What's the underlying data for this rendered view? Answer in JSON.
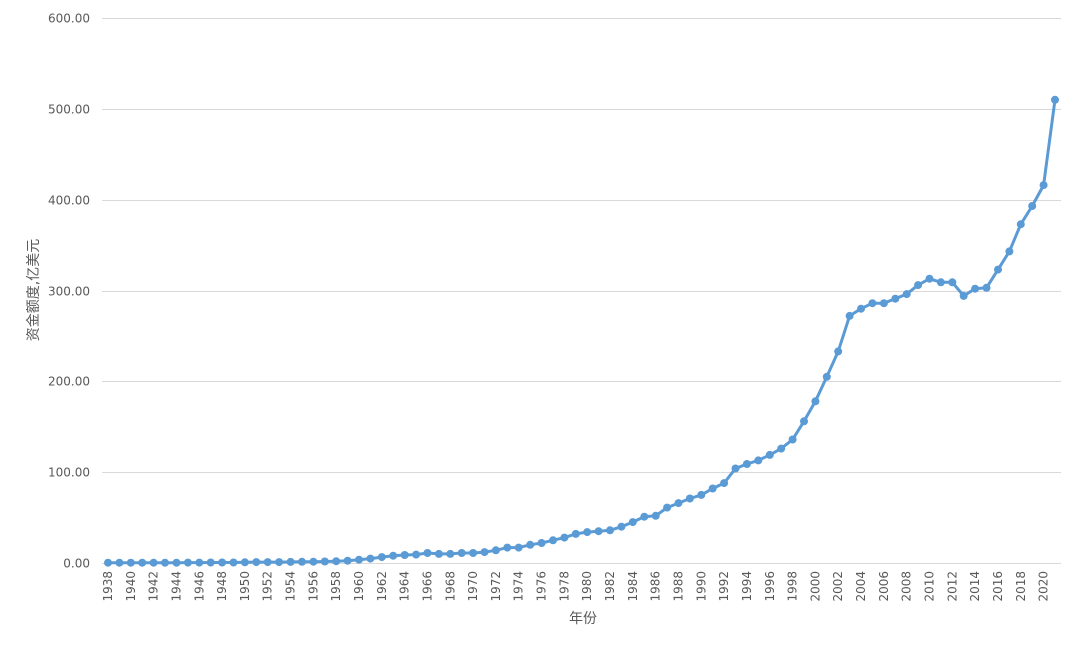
{
  "chart_data": {
    "type": "line",
    "title": "",
    "xlabel": "年份",
    "ylabel": "资金额度,亿美元",
    "ylim": [
      0,
      600
    ],
    "yticks": [
      "0.00",
      "100.00",
      "200.00",
      "300.00",
      "400.00",
      "500.00",
      "600.00"
    ],
    "grid": true,
    "marker": "circle",
    "color": "#5b9bd5",
    "x_tick_labels": [
      "1938",
      "1940",
      "1942",
      "1944",
      "1946",
      "1948",
      "1950",
      "1952",
      "1954",
      "1956",
      "1958",
      "1960",
      "1962",
      "1964",
      "1966",
      "1968",
      "1970",
      "1972",
      "1974",
      "1976",
      "1978",
      "1980",
      "1982",
      "1984",
      "1986",
      "1988",
      "1990",
      "1992",
      "1994",
      "1996",
      "1998",
      "2000",
      "2002",
      "2004",
      "2006",
      "2008",
      "2010",
      "2012",
      "2014",
      "2016",
      "2018",
      "2020"
    ],
    "x": [
      1938,
      1939,
      1940,
      1941,
      1942,
      1943,
      1944,
      1945,
      1946,
      1947,
      1948,
      1949,
      1950,
      1951,
      1952,
      1953,
      1954,
      1955,
      1956,
      1957,
      1958,
      1959,
      1960,
      1961,
      1962,
      1963,
      1964,
      1965,
      1966,
      1967,
      1968,
      1969,
      1970,
      1971,
      1972,
      1973,
      1974,
      1975,
      1976,
      1977,
      1978,
      1979,
      1980,
      1981,
      1982,
      1983,
      1984,
      1985,
      1986,
      1987,
      1988,
      1989,
      1990,
      1991,
      1992,
      1993,
      1994,
      1995,
      1996,
      1997,
      1998,
      1999,
      2000,
      2001,
      2002,
      2003,
      2004,
      2005,
      2006,
      2007,
      2008,
      2009,
      2010,
      2011,
      2012,
      2013,
      2014,
      2015,
      2016,
      2017,
      2018,
      2019,
      2020,
      2021
    ],
    "values": [
      0.3,
      0.3,
      0.3,
      0.3,
      0.3,
      0.3,
      0.3,
      0.4,
      0.4,
      0.5,
      0.5,
      0.6,
      0.8,
      1.0,
      1.0,
      1.0,
      1.2,
      1.3,
      1.4,
      1.6,
      2.0,
      2.5,
      3.6,
      4.8,
      6.5,
      8.0,
      8.8,
      9.3,
      11.0,
      10.0,
      10.0,
      11.0,
      11.0,
      12.0,
      14.0,
      17.0,
      17.0,
      20.0,
      22.0,
      25.0,
      28.0,
      32.0,
      34.0,
      35.0,
      36.0,
      40.0,
      45.0,
      51.0,
      52.0,
      61.0,
      66.0,
      71.0,
      75.0,
      82.0,
      88.0,
      104.0,
      109.0,
      113.0,
      119.0,
      126.0,
      136.0,
      156.0,
      178.0,
      205.0,
      233.0,
      272.0,
      280.0,
      286.0,
      286.0,
      291.0,
      296.0,
      306.0,
      313.0,
      309.0,
      309.0,
      294.0,
      302.0,
      303.0,
      323.0,
      343.0,
      373.0,
      393.0,
      416.0,
      510.0
    ]
  }
}
